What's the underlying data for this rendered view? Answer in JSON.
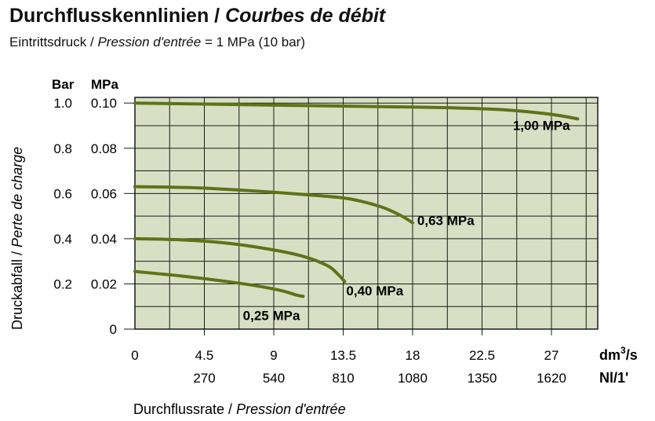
{
  "header": {
    "title_main": "Durchflusskennlinien /",
    "title_italic": "Courbes de débit",
    "subtitle_main": "Eintrittsdruck /",
    "subtitle_italic": "Pression d'entrée",
    "subtitle_value": "= 1 MPa (10 bar)"
  },
  "chart_data": {
    "type": "line",
    "ylabel_main": "Druckabfall /",
    "ylabel_italic": "Perte de charge",
    "xlabel_main": "Durchflussrate /",
    "xlabel_italic": "Pression d'entrée",
    "y_unit_bar": "Bar",
    "y_unit_mpa": "MPa",
    "x_unit_primary_base": "dm",
    "x_unit_primary_sup": "3",
    "x_unit_primary_tail": "/s",
    "x_unit_secondary": "Nl/1'",
    "xlim": [
      0,
      30
    ],
    "ylim": [
      0,
      0.1025
    ],
    "grid": true,
    "background_color": "#d9dfc4",
    "line_color": "#5e7318",
    "y_ticks": [
      {
        "value": 0,
        "bar": "",
        "mpa": "0"
      },
      {
        "value": 0.02,
        "bar": "0.2",
        "mpa": "0.02"
      },
      {
        "value": 0.04,
        "bar": "0.4",
        "mpa": "0.04"
      },
      {
        "value": 0.06,
        "bar": "0.6",
        "mpa": "0.06"
      },
      {
        "value": 0.08,
        "bar": "0.8",
        "mpa": "0.08"
      },
      {
        "value": 0.1,
        "bar": "1.0",
        "mpa": "0.10"
      }
    ],
    "x_ticks_primary": [
      {
        "value": 0,
        "label": "0"
      },
      {
        "value": 4.5,
        "label": "4.5"
      },
      {
        "value": 9,
        "label": "9"
      },
      {
        "value": 13.5,
        "label": "13.5"
      },
      {
        "value": 18,
        "label": "18"
      },
      {
        "value": 22.5,
        "label": "22.5"
      },
      {
        "value": 27,
        "label": "27"
      }
    ],
    "x_ticks_secondary": [
      {
        "value": 4.5,
        "label": "270"
      },
      {
        "value": 9,
        "label": "540"
      },
      {
        "value": 13.5,
        "label": "810"
      },
      {
        "value": 18,
        "label": "1080"
      },
      {
        "value": 22.5,
        "label": "1350"
      },
      {
        "value": 27,
        "label": "1620"
      }
    ],
    "x_grid": [
      2.25,
      4.5,
      6.75,
      9,
      11.25,
      13.5,
      15.75,
      18,
      20.25,
      22.5,
      24.75,
      27,
      29.25
    ],
    "y_grid": [
      0.01,
      0.02,
      0.03,
      0.04,
      0.05,
      0.06,
      0.07,
      0.08,
      0.09,
      0.1
    ],
    "series": [
      {
        "name": "1,00 MPa",
        "label_near": [
          24.5,
          0.088
        ],
        "points": [
          [
            0,
            0.1
          ],
          [
            5,
            0.0995
          ],
          [
            10,
            0.099
          ],
          [
            15,
            0.0985
          ],
          [
            20,
            0.098
          ],
          [
            24,
            0.097
          ],
          [
            27,
            0.095
          ],
          [
            28.7,
            0.093
          ]
        ]
      },
      {
        "name": "0,63 MPa",
        "label_near": [
          18.3,
          0.046
        ],
        "points": [
          [
            0,
            0.063
          ],
          [
            4,
            0.0625
          ],
          [
            8,
            0.061
          ],
          [
            12,
            0.059
          ],
          [
            14,
            0.0575
          ],
          [
            16,
            0.054
          ],
          [
            17.3,
            0.05
          ],
          [
            18,
            0.047
          ]
        ]
      },
      {
        "name": "0,40 MPa",
        "label_near": [
          13.7,
          0.015
        ],
        "points": [
          [
            0,
            0.04
          ],
          [
            3,
            0.0395
          ],
          [
            6,
            0.038
          ],
          [
            9,
            0.035
          ],
          [
            11,
            0.032
          ],
          [
            12.5,
            0.028
          ],
          [
            13.2,
            0.024
          ],
          [
            13.6,
            0.021
          ]
        ]
      },
      {
        "name": "0,25 MPa",
        "label_near": [
          7,
          0.004
        ],
        "points": [
          [
            0,
            0.0255
          ],
          [
            3,
            0.0235
          ],
          [
            6,
            0.021
          ],
          [
            8,
            0.019
          ],
          [
            9.5,
            0.017
          ],
          [
            10.5,
            0.015
          ],
          [
            10.9,
            0.0145
          ]
        ]
      }
    ]
  }
}
